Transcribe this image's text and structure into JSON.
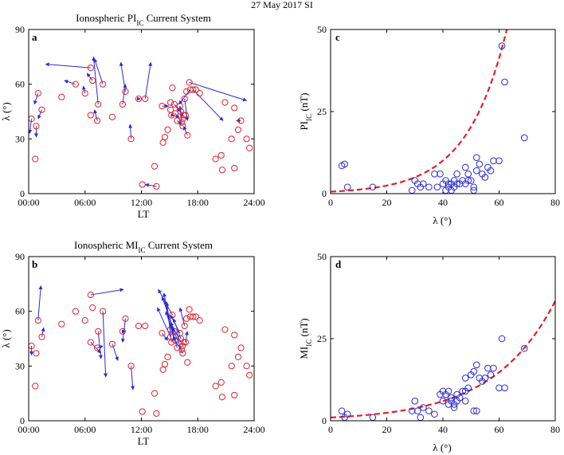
{
  "figure": {
    "suptitle": "27 May 2017 SI",
    "colors": {
      "marker": "#e0212b",
      "vector": "#2a2ad6",
      "scatter": "#2a2ad6",
      "fit": "#e0212b",
      "axis": "#000000"
    }
  },
  "chart_data": [
    {
      "id": "a",
      "type": "scatter",
      "letter": "a",
      "title_text": "Ionospheric PI",
      "title_sub": "IC",
      "title_suffix": " Current System",
      "xlabel": "LT",
      "ylabel": "λ (°)",
      "xlim": [
        0,
        24
      ],
      "ylim": [
        0,
        90
      ],
      "xticks": [
        0,
        6,
        12,
        18,
        24
      ],
      "xtick_labels": [
        "00:00",
        "06:00",
        "12:00",
        "18:00",
        "24:00"
      ],
      "yticks": [
        0,
        30,
        60,
        90
      ],
      "vectors": [
        [
          0.3,
          41,
          0.1,
          33
        ],
        [
          0.8,
          37,
          0.8,
          31
        ],
        [
          0.7,
          19,
          0.7,
          19
        ],
        [
          1.0,
          55,
          0.6,
          49
        ],
        [
          1.4,
          46,
          1.0,
          41
        ],
        [
          3.5,
          53,
          3.5,
          53
        ],
        [
          5.0,
          60,
          3.8,
          62
        ],
        [
          6.0,
          55,
          5.8,
          59
        ],
        [
          6.6,
          69,
          1.8,
          71
        ],
        [
          6.8,
          62,
          6.2,
          66
        ],
        [
          6.6,
          43,
          6.6,
          43
        ],
        [
          7.3,
          40,
          7.0,
          46
        ],
        [
          7.4,
          49,
          6.9,
          75
        ],
        [
          7.9,
          60,
          7.0,
          74
        ],
        [
          8.9,
          42,
          8.9,
          42
        ],
        [
          10.0,
          49,
          10.3,
          60
        ],
        [
          10.3,
          56,
          9.8,
          72
        ],
        [
          10.9,
          30,
          10.8,
          38
        ],
        [
          11.7,
          52,
          11.9,
          52
        ],
        [
          12.1,
          5,
          12.1,
          5
        ],
        [
          12.4,
          52,
          13.0,
          72
        ],
        [
          13.6,
          4,
          12.4,
          5
        ],
        [
          13.4,
          15,
          13.4,
          15
        ],
        [
          14.2,
          48,
          14.9,
          48
        ],
        [
          14.3,
          28,
          14.3,
          28
        ],
        [
          14.5,
          31,
          14.5,
          31
        ],
        [
          14.8,
          35,
          14.8,
          35
        ],
        [
          15.1,
          46,
          15.1,
          46
        ],
        [
          15.1,
          50,
          15.1,
          50
        ],
        [
          15.3,
          58,
          15.3,
          58
        ],
        [
          15.2,
          43,
          15.5,
          43
        ],
        [
          15.5,
          49,
          16.1,
          45
        ],
        [
          15.6,
          44,
          16.0,
          41
        ],
        [
          15.8,
          40,
          16.3,
          38
        ],
        [
          16.1,
          48,
          16.3,
          42
        ],
        [
          16.3,
          39,
          16.1,
          48
        ],
        [
          16.2,
          45,
          16.3,
          45
        ],
        [
          16.4,
          41,
          16.4,
          41
        ],
        [
          16.4,
          37,
          16.4,
          37
        ],
        [
          16.5,
          43,
          16.5,
          43
        ],
        [
          16.6,
          52,
          16.9,
          40
        ],
        [
          16.7,
          43,
          16.7,
          43
        ],
        [
          16.9,
          32,
          16.5,
          37
        ],
        [
          16.8,
          56,
          16.8,
          56
        ],
        [
          17.1,
          61,
          23.2,
          51
        ],
        [
          17.2,
          57,
          16.0,
          49
        ],
        [
          17.5,
          57,
          20.7,
          40
        ],
        [
          17.8,
          57,
          17.8,
          57
        ],
        [
          18.2,
          55,
          18.2,
          55
        ],
        [
          19.9,
          19,
          19.9,
          19
        ],
        [
          20.5,
          21,
          20.5,
          21
        ],
        [
          20.6,
          13,
          20.6,
          13
        ],
        [
          20.9,
          50,
          20.8,
          50
        ],
        [
          21.6,
          30,
          21.6,
          30
        ],
        [
          21.9,
          14,
          21.9,
          14
        ],
        [
          21.9,
          47,
          21.9,
          47
        ],
        [
          22.3,
          35,
          22.3,
          35
        ],
        [
          22.6,
          40,
          22.1,
          40
        ],
        [
          23.2,
          30,
          23.2,
          30
        ],
        [
          23.5,
          25,
          23.5,
          25
        ]
      ]
    },
    {
      "id": "b",
      "type": "scatter",
      "letter": "b",
      "title_text": "Ionospheric MI",
      "title_sub": "IC",
      "title_suffix": " Current System",
      "xlabel": "LT",
      "ylabel": "λ (°)",
      "xlim": [
        0,
        24
      ],
      "ylim": [
        0,
        90
      ],
      "xticks": [
        0,
        6,
        12,
        18,
        24
      ],
      "xtick_labels": [
        "00:00",
        "06:00",
        "12:00",
        "18:00",
        "24:00"
      ],
      "yticks": [
        0,
        30,
        60,
        90
      ],
      "vectors": [
        [
          0.3,
          41,
          0.3,
          36
        ],
        [
          0.8,
          37,
          0.8,
          37
        ],
        [
          0.7,
          19,
          0.7,
          19
        ],
        [
          1.0,
          55,
          1.3,
          74
        ],
        [
          1.4,
          46,
          1.6,
          51
        ],
        [
          3.5,
          53,
          3.5,
          53
        ],
        [
          5.0,
          60,
          5.0,
          60
        ],
        [
          6.0,
          55,
          6.0,
          55
        ],
        [
          6.6,
          69,
          10.1,
          72
        ],
        [
          6.8,
          62,
          6.8,
          62
        ],
        [
          6.6,
          43,
          7.7,
          37
        ],
        [
          7.3,
          40,
          7.9,
          41
        ],
        [
          7.4,
          49,
          7.7,
          34
        ],
        [
          7.9,
          60,
          8.2,
          24
        ],
        [
          8.9,
          42,
          9.5,
          33
        ],
        [
          10.0,
          49,
          10.3,
          49
        ],
        [
          10.3,
          56,
          10.0,
          43
        ],
        [
          10.9,
          30,
          11.1,
          17
        ],
        [
          11.7,
          52,
          11.7,
          52
        ],
        [
          12.1,
          5,
          12.1,
          5
        ],
        [
          12.4,
          52,
          12.4,
          52
        ],
        [
          13.6,
          4,
          13.6,
          4
        ],
        [
          13.4,
          15,
          13.4,
          15
        ],
        [
          14.2,
          48,
          14.8,
          44
        ],
        [
          14.3,
          28,
          14.3,
          28
        ],
        [
          14.5,
          31,
          14.5,
          31
        ],
        [
          14.8,
          35,
          14.8,
          35
        ],
        [
          15.1,
          46,
          13.7,
          62
        ],
        [
          15.1,
          50,
          14.4,
          70
        ],
        [
          15.3,
          58,
          13.8,
          72
        ],
        [
          15.2,
          43,
          14.7,
          65
        ],
        [
          15.5,
          49,
          14.2,
          68
        ],
        [
          15.6,
          44,
          14.6,
          60
        ],
        [
          15.8,
          40,
          14.5,
          66
        ],
        [
          16.1,
          48,
          15.1,
          58
        ],
        [
          16.3,
          39,
          15.2,
          52
        ],
        [
          16.2,
          45,
          15.4,
          56
        ],
        [
          16.4,
          41,
          15.1,
          54
        ],
        [
          16.4,
          37,
          15.4,
          46
        ],
        [
          16.5,
          43,
          16.5,
          43
        ],
        [
          16.6,
          52,
          16.1,
          62
        ],
        [
          16.7,
          43,
          16.9,
          49
        ],
        [
          16.9,
          32,
          16.9,
          32
        ],
        [
          16.8,
          56,
          16.8,
          56
        ],
        [
          17.1,
          61,
          17.1,
          61
        ],
        [
          17.2,
          57,
          17.2,
          57
        ],
        [
          17.5,
          57,
          17.5,
          57
        ],
        [
          17.8,
          57,
          17.8,
          57
        ],
        [
          18.2,
          55,
          18.2,
          55
        ],
        [
          19.9,
          19,
          19.9,
          19
        ],
        [
          20.5,
          21,
          20.5,
          21
        ],
        [
          20.6,
          13,
          20.6,
          13
        ],
        [
          20.9,
          50,
          20.9,
          50
        ],
        [
          21.6,
          30,
          21.6,
          30
        ],
        [
          21.9,
          14,
          21.9,
          14
        ],
        [
          21.9,
          47,
          21.9,
          47
        ],
        [
          22.3,
          35,
          22.3,
          35
        ],
        [
          22.6,
          40,
          22.6,
          40
        ],
        [
          23.2,
          30,
          23.2,
          30
        ],
        [
          23.5,
          25,
          23.5,
          25
        ]
      ]
    },
    {
      "id": "c",
      "type": "scatter",
      "letter": "c",
      "xlabel": "λ (°)",
      "ylabel_main": "PI",
      "ylabel_sub": "IC",
      "ylabel_suffix": " (nT)",
      "xlim": [
        0,
        80
      ],
      "ylim": [
        0,
        50
      ],
      "xticks": [
        0,
        20,
        40,
        60,
        80
      ],
      "yticks": [
        0,
        25,
        50
      ],
      "fit": {
        "type": "exponential",
        "a": 0.6,
        "b": 0.0705,
        "xrange": [
          0,
          80
        ]
      },
      "points": [
        [
          4,
          8.5
        ],
        [
          5,
          9
        ],
        [
          6,
          2
        ],
        [
          15,
          2
        ],
        [
          29,
          1
        ],
        [
          30,
          4
        ],
        [
          31,
          3
        ],
        [
          32,
          2
        ],
        [
          33,
          3
        ],
        [
          35,
          2
        ],
        [
          37,
          6
        ],
        [
          38,
          2
        ],
        [
          39,
          6
        ],
        [
          40,
          3
        ],
        [
          41,
          4
        ],
        [
          41,
          1
        ],
        [
          42,
          3
        ],
        [
          42,
          2
        ],
        [
          43,
          3
        ],
        [
          43,
          1
        ],
        [
          44,
          2
        ],
        [
          44,
          4
        ],
        [
          45,
          6
        ],
        [
          45,
          3
        ],
        [
          46,
          3
        ],
        [
          47,
          4
        ],
        [
          48,
          8
        ],
        [
          48,
          3
        ],
        [
          49,
          4
        ],
        [
          49,
          6
        ],
        [
          50,
          4
        ],
        [
          51,
          1
        ],
        [
          51,
          2
        ],
        [
          52,
          7
        ],
        [
          52,
          11
        ],
        [
          53,
          9
        ],
        [
          54,
          6
        ],
        [
          55,
          5
        ],
        [
          56,
          8
        ],
        [
          57,
          7
        ],
        [
          58,
          10
        ],
        [
          60,
          10
        ],
        [
          61,
          45
        ],
        [
          62,
          34
        ],
        [
          69,
          17
        ]
      ]
    },
    {
      "id": "d",
      "type": "scatter",
      "letter": "d",
      "xlabel": "λ (°)",
      "ylabel_main": "MI",
      "ylabel_sub": "IC",
      "ylabel_suffix": " (nT)",
      "xlim": [
        0,
        80
      ],
      "ylim": [
        0,
        50
      ],
      "xticks": [
        0,
        20,
        40,
        60,
        80
      ],
      "yticks": [
        0,
        25,
        50
      ],
      "fit": {
        "type": "exponential",
        "a": 0.98,
        "b": 0.0452,
        "xrange": [
          0,
          80
        ]
      },
      "points": [
        [
          4,
          3
        ],
        [
          5,
          1
        ],
        [
          6,
          2
        ],
        [
          15,
          1
        ],
        [
          29,
          3
        ],
        [
          30,
          6
        ],
        [
          31,
          3
        ],
        [
          32,
          1
        ],
        [
          33,
          4
        ],
        [
          35,
          3
        ],
        [
          37,
          2
        ],
        [
          39,
          8
        ],
        [
          40,
          6
        ],
        [
          40,
          9
        ],
        [
          41,
          8
        ],
        [
          42,
          5
        ],
        [
          42,
          9
        ],
        [
          43,
          6
        ],
        [
          43,
          7
        ],
        [
          44,
          4
        ],
        [
          44,
          5
        ],
        [
          45,
          8
        ],
        [
          45,
          6
        ],
        [
          46,
          7
        ],
        [
          47,
          9
        ],
        [
          48,
          13
        ],
        [
          48,
          9
        ],
        [
          48,
          6
        ],
        [
          49,
          10
        ],
        [
          50,
          14
        ],
        [
          51,
          15
        ],
        [
          51,
          3
        ],
        [
          52,
          3
        ],
        [
          52,
          17
        ],
        [
          53,
          13
        ],
        [
          54,
          12
        ],
        [
          55,
          13
        ],
        [
          56,
          16
        ],
        [
          57,
          14
        ],
        [
          58,
          16
        ],
        [
          60,
          10
        ],
        [
          61,
          25
        ],
        [
          62,
          10
        ],
        [
          69,
          22
        ]
      ]
    }
  ]
}
